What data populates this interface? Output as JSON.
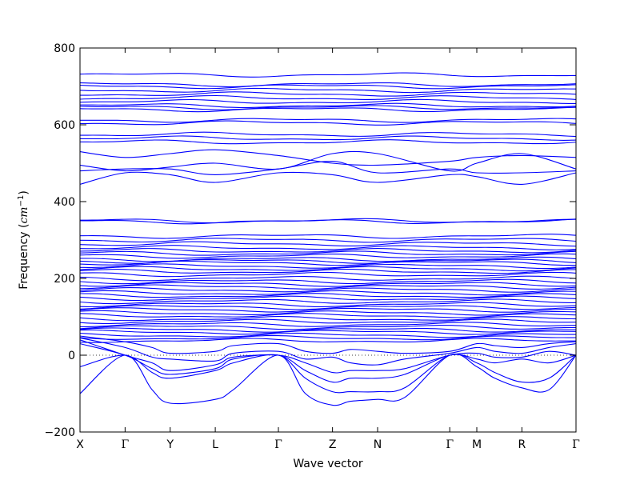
{
  "chart_data": {
    "type": "line",
    "title": "",
    "xlabel": "Wave vector",
    "ylabel_text": "Frequency (",
    "ylabel_unit": "cm",
    "ylabel_exp": "−1",
    "ylabel_close": ")",
    "ylim": [
      -200,
      800
    ],
    "yticks": [
      "800",
      "600",
      "400",
      "200",
      "0",
      "−200"
    ],
    "ytick_values": [
      800,
      600,
      400,
      200,
      0,
      -200
    ],
    "xticks": [
      "X",
      "Γ",
      "Y",
      "L",
      "Γ",
      "Z",
      "N",
      "Γ",
      "M",
      "R",
      "Γ"
    ],
    "xtick_positions": [
      0,
      0.5,
      1.0,
      1.5,
      2.2,
      2.8,
      3.3,
      4.1,
      4.4,
      4.9,
      5.5
    ],
    "xlim": [
      0,
      5.5
    ],
    "zero_line": true,
    "line_color": "#0000ff",
    "high_bands": [
      730,
      705,
      700,
      690,
      680,
      670,
      660,
      650,
      645,
      640,
      612,
      605,
      575,
      565,
      555,
      350,
      348,
      310,
      300,
      290,
      280,
      272,
      265,
      258,
      250,
      245,
      240,
      232,
      225,
      218,
      210,
      200,
      192,
      185,
      178,
      170,
      162,
      155,
      148,
      140,
      132,
      125,
      118,
      110,
      103,
      95,
      88,
      80,
      73,
      66,
      60,
      52,
      45,
      38
    ],
    "mid_bands": [
      {
        "x": [
          0,
          0.5,
          1.0,
          1.5,
          2.2,
          2.8,
          3.3,
          4.1,
          4.4,
          4.9,
          5.5
        ],
        "y": [
          530,
          515,
          525,
          535,
          520,
          500,
          495,
          505,
          515,
          520,
          515
        ]
      },
      {
        "x": [
          0,
          0.5,
          1.0,
          1.5,
          2.2,
          2.8,
          3.3,
          4.1,
          4.4,
          4.9,
          5.5
        ],
        "y": [
          495,
          480,
          490,
          500,
          485,
          525,
          525,
          480,
          500,
          525,
          485
        ]
      },
      {
        "x": [
          0,
          0.5,
          1.0,
          1.5,
          2.2,
          2.8,
          3.3,
          4.1,
          4.4,
          4.9,
          5.5
        ],
        "y": [
          480,
          485,
          485,
          470,
          485,
          505,
          475,
          485,
          475,
          475,
          480
        ]
      },
      {
        "x": [
          0,
          0.5,
          1.0,
          1.5,
          2.2,
          2.8,
          3.3,
          4.1,
          4.4,
          4.9,
          5.5
        ],
        "y": [
          445,
          475,
          470,
          450,
          475,
          470,
          450,
          470,
          465,
          445,
          475
        ]
      }
    ],
    "low_bands": [
      {
        "x": [
          0,
          0.5,
          0.8,
          1.0,
          1.5,
          1.7,
          2.2,
          2.5,
          2.8,
          3.0,
          3.3,
          3.6,
          4.1,
          4.4,
          4.6,
          4.9,
          5.2,
          5.5
        ],
        "y": [
          -100,
          0,
          -90,
          -125,
          -115,
          -90,
          0,
          -100,
          -130,
          -120,
          -115,
          -110,
          0,
          -30,
          -60,
          -85,
          -90,
          0
        ]
      },
      {
        "x": [
          0,
          0.5,
          0.8,
          1.0,
          1.5,
          1.7,
          2.2,
          2.5,
          2.8,
          3.0,
          3.3,
          3.6,
          4.1,
          4.4,
          4.6,
          4.9,
          5.2,
          5.5
        ],
        "y": [
          -30,
          0,
          -45,
          -60,
          -40,
          -20,
          0,
          -60,
          -95,
          -95,
          -95,
          -85,
          0,
          -20,
          -45,
          -70,
          -60,
          0
        ]
      },
      {
        "x": [
          0,
          0.5,
          0.8,
          1.0,
          1.5,
          1.7,
          2.2,
          2.5,
          2.8,
          3.0,
          3.3,
          3.6,
          4.1,
          4.4,
          4.6,
          4.9,
          5.2,
          5.5
        ],
        "y": [
          30,
          0,
          -35,
          -50,
          -35,
          -10,
          0,
          -40,
          -70,
          -60,
          -60,
          -50,
          0,
          -10,
          -20,
          -10,
          -20,
          0
        ]
      },
      {
        "x": [
          0,
          0.5,
          0.8,
          1.0,
          1.5,
          1.7,
          2.2,
          2.5,
          2.8,
          3.0,
          3.3,
          3.6,
          4.1,
          4.4,
          4.6,
          4.9,
          5.2,
          5.5
        ],
        "y": [
          40,
          0,
          -20,
          -40,
          -25,
          -5,
          0,
          -20,
          -45,
          -40,
          -40,
          -35,
          0,
          5,
          -5,
          -5,
          10,
          0
        ]
      },
      {
        "x": [
          0,
          0.5,
          0.8,
          1.0,
          1.5,
          1.7,
          2.2,
          2.5,
          2.8,
          3.0,
          3.3,
          3.6,
          4.1,
          4.4,
          4.6,
          4.9,
          5.2,
          5.5
        ],
        "y": [
          45,
          20,
          -5,
          -10,
          -15,
          5,
          10,
          -10,
          -5,
          -20,
          -25,
          -10,
          5,
          20,
          10,
          5,
          20,
          30
        ]
      },
      {
        "x": [
          0,
          0.5,
          0.8,
          1.0,
          1.5,
          1.7,
          2.2,
          2.5,
          2.8,
          3.0,
          3.3,
          3.6,
          4.1,
          4.4,
          4.6,
          4.9,
          5.2,
          5.5
        ],
        "y": [
          50,
          35,
          20,
          5,
          10,
          25,
          30,
          10,
          5,
          15,
          10,
          5,
          10,
          30,
          25,
          20,
          30,
          35
        ]
      }
    ]
  }
}
